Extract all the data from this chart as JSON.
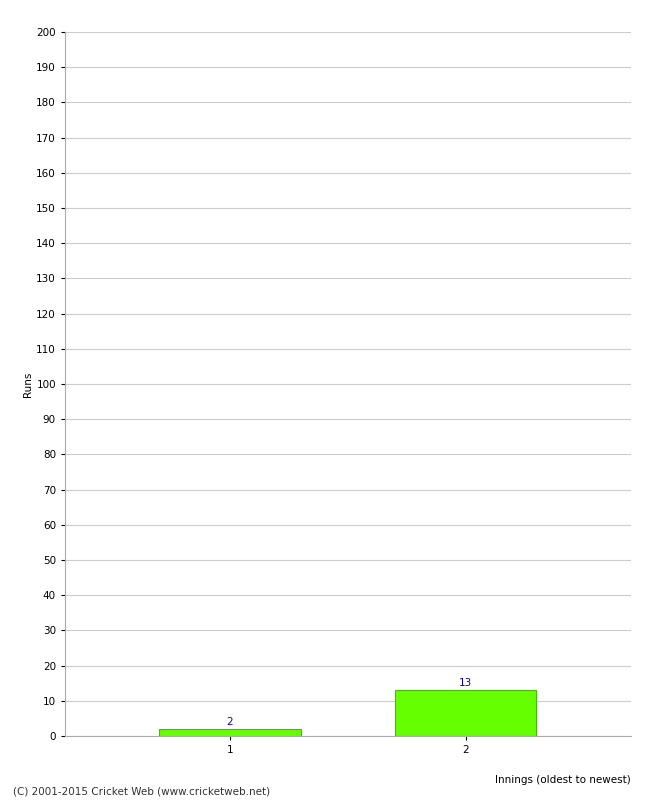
{
  "categories": [
    1,
    2
  ],
  "values": [
    2,
    13
  ],
  "bar_color": "#66ff00",
  "bar_edge_color": "#44bb00",
  "xlabel": "Innings (oldest to newest)",
  "ylabel": "Runs",
  "ylim": [
    0,
    200
  ],
  "yticks": [
    0,
    10,
    20,
    30,
    40,
    50,
    60,
    70,
    80,
    90,
    100,
    110,
    120,
    130,
    140,
    150,
    160,
    170,
    180,
    190,
    200
  ],
  "xticks": [
    1,
    2
  ],
  "label_color": "#0000cc",
  "label_fontsize": 7.5,
  "axis_fontsize": 7.5,
  "ylabel_fontsize": 7.5,
  "xlabel_fontsize": 7.5,
  "footer_text": "(C) 2001-2015 Cricket Web (www.cricketweb.net)",
  "footer_fontsize": 7.5,
  "background_color": "#ffffff",
  "grid_color": "#cccccc"
}
